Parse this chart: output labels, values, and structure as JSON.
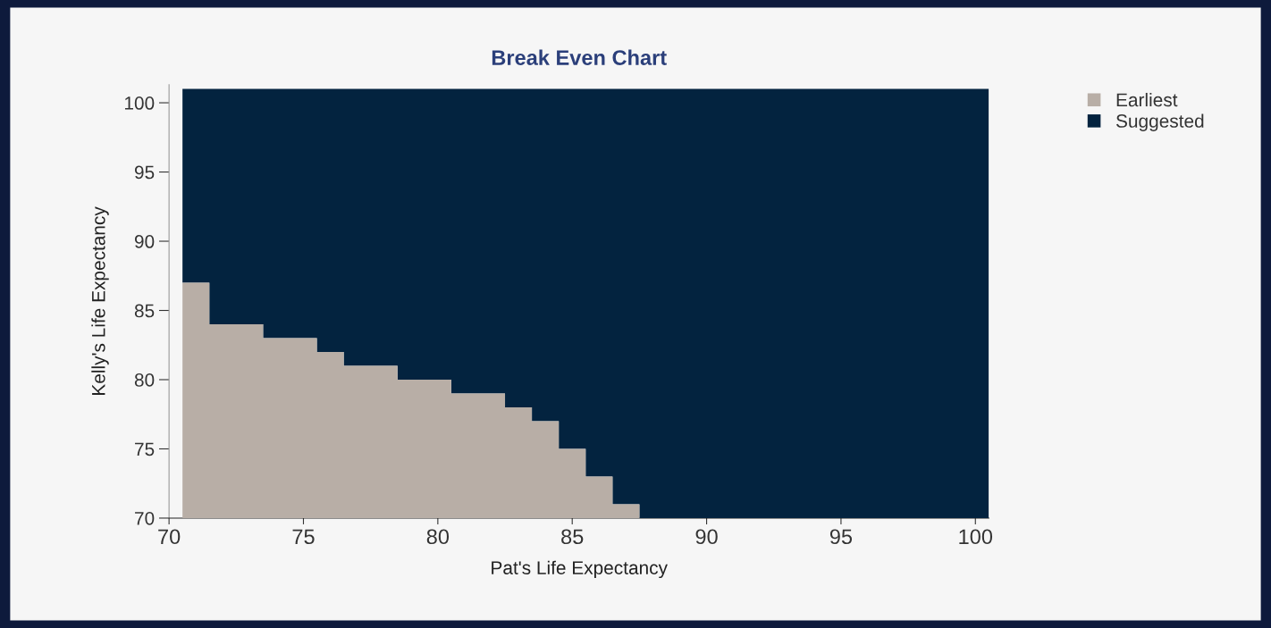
{
  "chart_data": {
    "type": "area",
    "title": "Break Even Chart",
    "xlabel": "Pat's Life Expectancy",
    "ylabel": "Kelly's Life Expectancy",
    "x": [
      70.5,
      71.5,
      72.5,
      73.5,
      74.5,
      75.5,
      76.5,
      77.5,
      78.5,
      79.5,
      80.5,
      81.5,
      82.5,
      83.5,
      84.5,
      85.5,
      86.5,
      87.5,
      88.5,
      89.5,
      90.5,
      91.5,
      92.5,
      93.5,
      94.5,
      95.5,
      96.5,
      97.5,
      98.5,
      99.5,
      100.5
    ],
    "series": [
      {
        "name": "Earliest",
        "color": "#b8aea6",
        "values": [
          87,
          84,
          84,
          83,
          83,
          82,
          81,
          81,
          80,
          80,
          79,
          79,
          78,
          77,
          75,
          73,
          71,
          70,
          70,
          70,
          70,
          70,
          70,
          70,
          70,
          70,
          70,
          70,
          70,
          70,
          70
        ]
      },
      {
        "name": "Suggested",
        "color": "#03233f",
        "values": [
          101,
          101,
          101,
          101,
          101,
          101,
          101,
          101,
          101,
          101,
          101,
          101,
          101,
          101,
          101,
          101,
          101,
          101,
          101,
          101,
          101,
          101,
          101,
          101,
          101,
          101,
          101,
          101,
          101,
          101,
          101
        ]
      }
    ],
    "xlim": [
      70,
      100.5
    ],
    "ylim": [
      70,
      101.3
    ],
    "xticks": [
      70,
      75,
      80,
      85,
      90,
      95,
      100
    ],
    "yticks": [
      70,
      75,
      80,
      85,
      90,
      95,
      100
    ],
    "grid": false,
    "legend": "top right"
  }
}
